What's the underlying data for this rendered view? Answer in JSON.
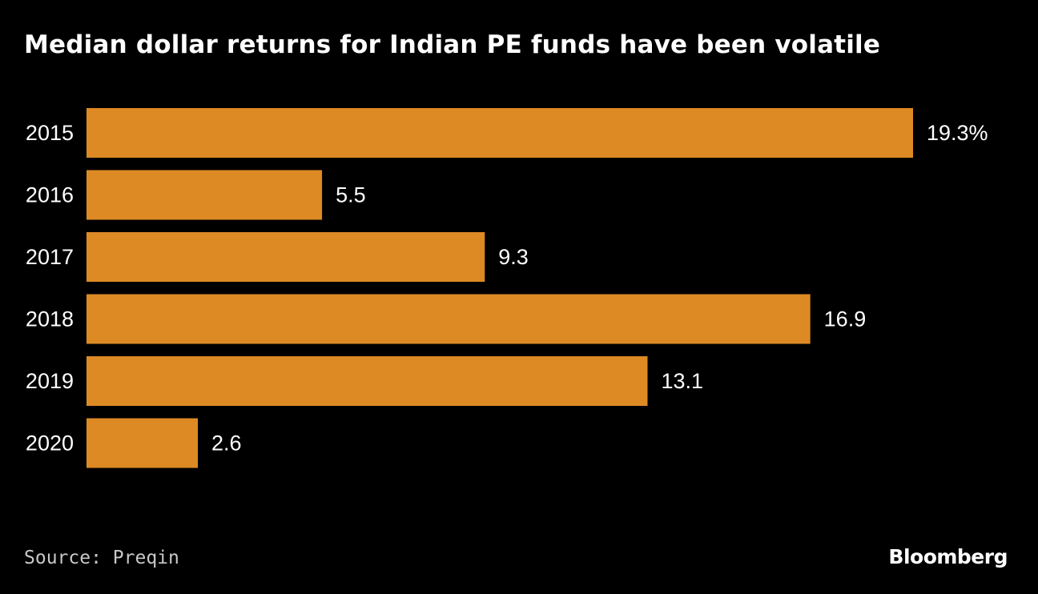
{
  "chart_data": {
    "type": "bar",
    "orientation": "horizontal",
    "title": "Median dollar returns for Indian PE funds have been volatile",
    "categories": [
      "2015",
      "2016",
      "2017",
      "2018",
      "2019",
      "2020"
    ],
    "values": [
      19.3,
      5.5,
      9.3,
      16.9,
      13.1,
      2.6
    ],
    "value_labels": [
      "19.3%",
      "5.5",
      "9.3",
      "16.9",
      "13.1",
      "2.6"
    ],
    "unit": "%",
    "xlim": [
      0,
      19.3
    ],
    "grid": false,
    "bar_color": "#DD8A24",
    "xlabel": "",
    "ylabel": ""
  },
  "footer": {
    "source": "Source: Preqin",
    "brand": "Bloomberg"
  },
  "colors": {
    "background": "#000000",
    "text": "#FFFFFF",
    "source_text": "#C8C8C8"
  }
}
